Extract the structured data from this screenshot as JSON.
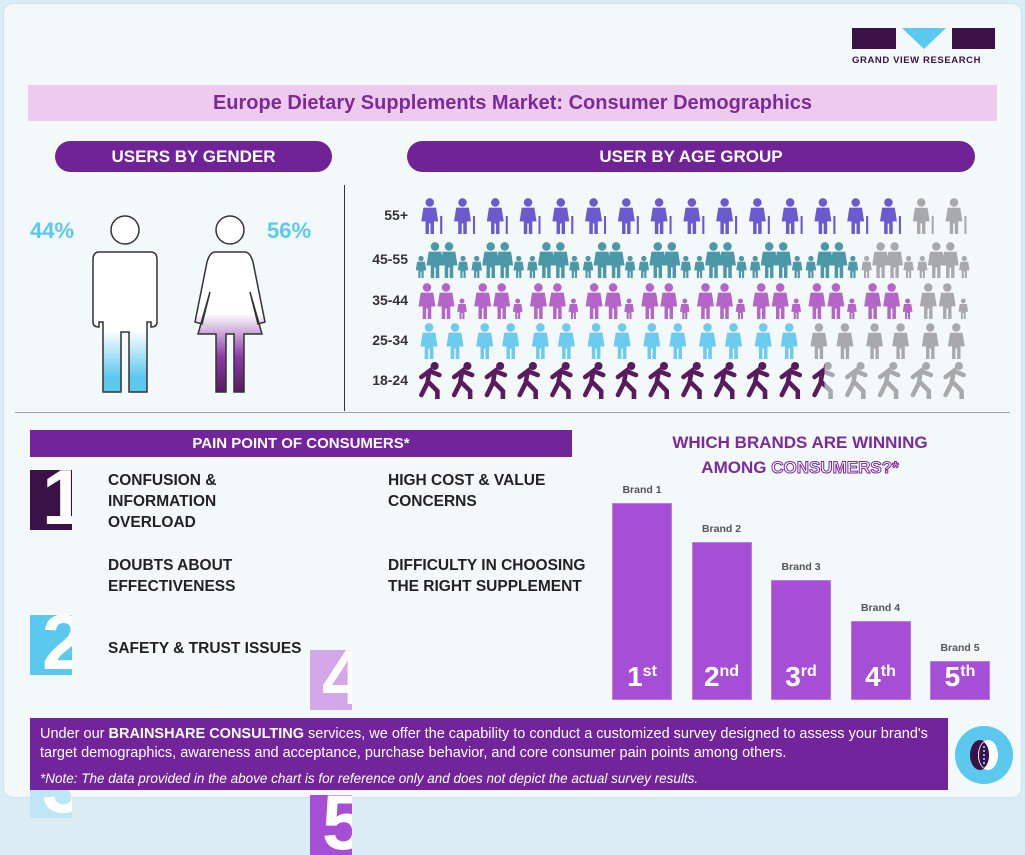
{
  "brand": {
    "logo_text": "GRAND VIEW RESEARCH",
    "colors": {
      "dark": "#3b1248",
      "light_blue": "#5bc8f0"
    }
  },
  "title": "Europe Dietary Supplements Market: Consumer Demographics",
  "gender": {
    "header": "USERS BY GENDER",
    "male_pct": "44%",
    "female_pct": "56%",
    "male_value": 44,
    "female_value": 56
  },
  "age": {
    "header": "USER BY AGE GROUP",
    "rows": [
      {
        "label": "55+",
        "icon": "elderly-person-icon",
        "filled": 15,
        "total": 17,
        "color": "#6a5acd"
      },
      {
        "label": "45-55",
        "icon": "family-icon",
        "filled": 8,
        "total": 10,
        "color": "#4a98a8"
      },
      {
        "label": "35-44",
        "icon": "parents-child-icon",
        "filled": 9,
        "total": 10,
        "color": "#b565c8"
      },
      {
        "label": "25-34",
        "icon": "couple-icon",
        "filled": 7,
        "total": 10,
        "color": "#6cccef"
      },
      {
        "label": "18-24",
        "icon": "runner-icon",
        "filled": 12.5,
        "total": 17,
        "color": "#5a1a5e"
      }
    ],
    "inactive_color": "#a7a9ab"
  },
  "pain_points": {
    "header": "PAIN POINT OF CONSUMERS*",
    "items": [
      {
        "num": "1",
        "text": "CONFUSION & INFORMATION OVERLOAD",
        "color": "#3b1248"
      },
      {
        "num": "2",
        "text": "DOUBTS ABOUT EFFECTIVENESS",
        "color": "#5bc8f0"
      },
      {
        "num": "3",
        "text": "SAFETY & TRUST ISSUES",
        "color": "#bfe6f7"
      },
      {
        "num": "4",
        "text": "HIGH COST & VALUE CONCERNS",
        "color": "#d4a8e8"
      },
      {
        "num": "5",
        "text": "DIFFICULTY IN CHOOSING THE RIGHT SUPPLEMENT",
        "color": "#a64fd6"
      }
    ]
  },
  "brands": {
    "title_line1": "WHICH BRANDS ARE WINNING",
    "title_line2_a": "AMONG ",
    "title_line2_b": "CONSUMERS?*"
  },
  "chart_data": {
    "type": "bar",
    "categories": [
      "Brand 1",
      "Brand 2",
      "Brand 3",
      "Brand 4",
      "Brand 5"
    ],
    "ranks": [
      {
        "n": "1",
        "s": "st"
      },
      {
        "n": "2",
        "s": "nd"
      },
      {
        "n": "3",
        "s": "rd"
      },
      {
        "n": "4",
        "s": "th"
      },
      {
        "n": "5",
        "s": "th"
      }
    ],
    "values": [
      100,
      80,
      61,
      40,
      20
    ],
    "color": "#a64fd6"
  },
  "footer": {
    "pre": "Under our ",
    "bold": "BRAINSHARE CONSULTING",
    "post": " services, we offer the capability to conduct a customized survey designed to assess your brand's target demographics, awareness and acceptance, purchase behavior, and core consumer pain points among others.",
    "note": "*Note: The data provided in the above chart is for reference only and does not depict the actual survey results."
  }
}
